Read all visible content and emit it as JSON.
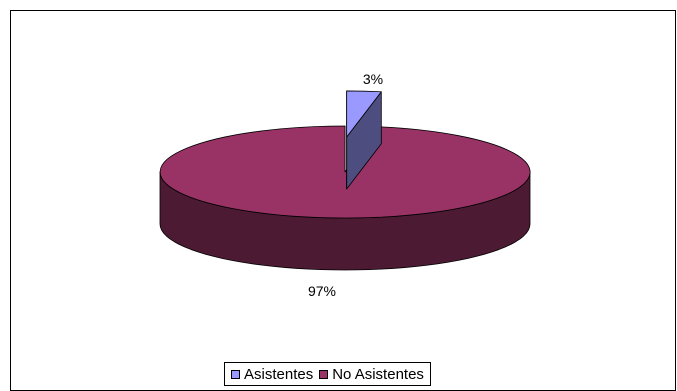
{
  "chart_data": {
    "type": "pie",
    "title": "",
    "categories": [
      "Asistentes",
      "No Asistentes"
    ],
    "values": [
      3,
      97
    ],
    "data_labels": [
      "3%",
      "97%"
    ],
    "colors": [
      "#9999ff",
      "#993366"
    ],
    "side_colors": [
      "#4d4d80",
      "#4d1a33"
    ],
    "exploded": [
      "Asistentes"
    ],
    "style": "3d",
    "legend_position": "bottom"
  },
  "legend": {
    "items": [
      {
        "label": "Asistentes",
        "color": "#9999ff"
      },
      {
        "label": "No Asistentes",
        "color": "#993366"
      }
    ]
  }
}
